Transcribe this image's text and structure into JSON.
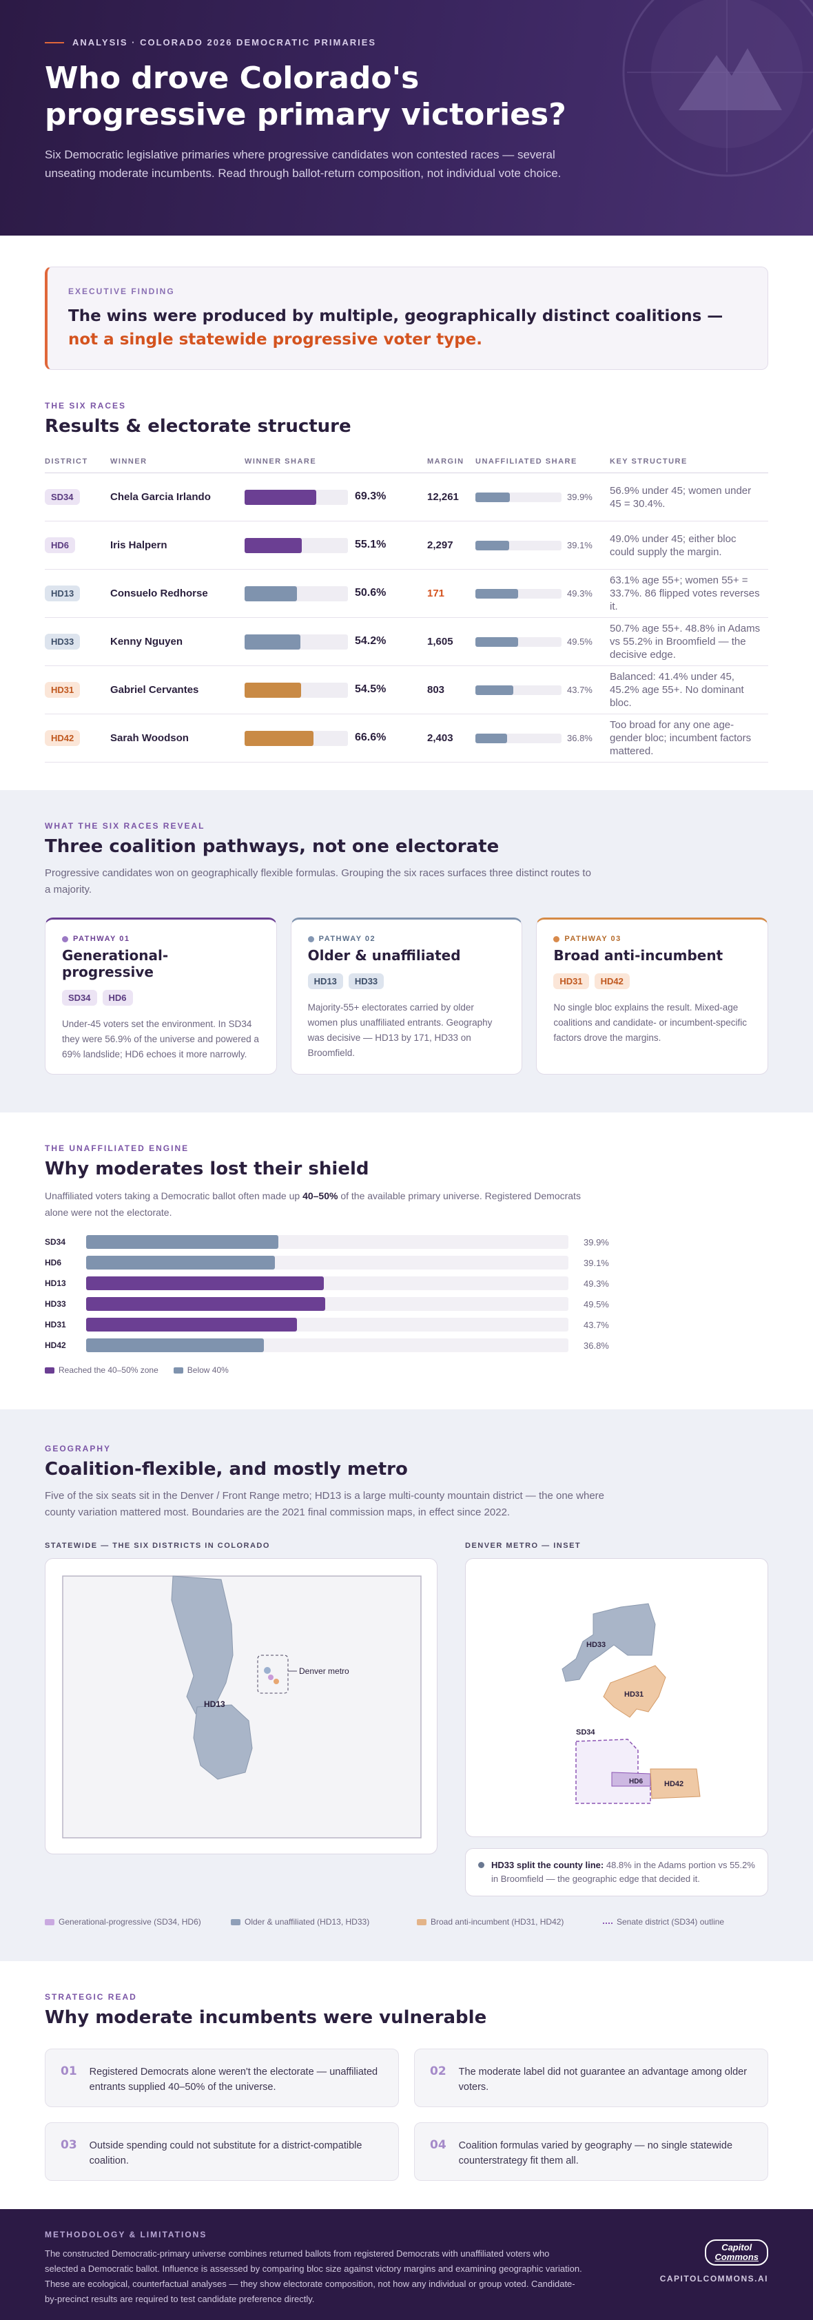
{
  "hero": {
    "kicker": "ANALYSIS · COLORADO 2026 DEMOCRATIC PRIMARIES",
    "title": "Who drove Colorado's progressive primary victories?",
    "subtitle": "Six Democratic legislative primaries where progressive candidates won contested races — several unseating moderate incumbents. Read through ballot-return composition, not individual vote choice."
  },
  "finding": {
    "label": "EXECUTIVE FINDING",
    "text_main": "The wins were produced by multiple, geographically distinct coalitions — ",
    "text_accent": "not a single statewide progressive voter type."
  },
  "races": {
    "eyebrow": "THE SIX RACES",
    "title": "Results & electorate structure",
    "columns": [
      "DISTRICT",
      "WINNER",
      "WINNER SHARE",
      "MARGIN",
      "UNAFFILIATED SHARE",
      "KEY STRUCTURE"
    ],
    "rows": [
      {
        "district": "SD34",
        "winner": "Chela Garcia Irlando",
        "share": 69.3,
        "share_label": "69.3%",
        "margin": "12,261",
        "unaff": 39.9,
        "unaff_label": "39.9%",
        "structure": "56.9% under 45; women under 45 = 30.4%.",
        "pathway": 1
      },
      {
        "district": "HD6",
        "winner": "Iris Halpern",
        "share": 55.1,
        "share_label": "55.1%",
        "margin": "2,297",
        "unaff": 39.1,
        "unaff_label": "39.1%",
        "structure": "49.0% under 45; either bloc could supply the margin.",
        "pathway": 1
      },
      {
        "district": "HD13",
        "winner": "Consuelo Redhorse",
        "share": 50.6,
        "share_label": "50.6%",
        "margin": "171",
        "unaff": 49.3,
        "unaff_label": "49.3%",
        "structure": "63.1% age 55+; women 55+ = 33.7%. 86 flipped votes reverses it.",
        "pathway": 2
      },
      {
        "district": "HD33",
        "winner": "Kenny Nguyen",
        "share": 54.2,
        "share_label": "54.2%",
        "margin": "1,605",
        "unaff": 49.5,
        "unaff_label": "49.5%",
        "structure": "50.7% age 55+. 48.8% in Adams vs 55.2% in Broomfield — the decisive edge.",
        "pathway": 2
      },
      {
        "district": "HD31",
        "winner": "Gabriel Cervantes",
        "share": 54.5,
        "share_label": "54.5%",
        "margin": "803",
        "unaff": 43.7,
        "unaff_label": "43.7%",
        "structure": "Balanced: 41.4% under 45, 45.2% age 55+. No dominant bloc.",
        "pathway": 3
      },
      {
        "district": "HD42",
        "winner": "Sarah Woodson",
        "share": 66.6,
        "share_label": "66.6%",
        "margin": "2,403",
        "unaff": 36.8,
        "unaff_label": "36.8%",
        "structure": "Too broad for any one age-gender bloc; incumbent factors mattered.",
        "pathway": 3
      }
    ]
  },
  "pathways": {
    "eyebrow": "WHAT THE SIX RACES REVEAL",
    "title": "Three coalition pathways, not one electorate",
    "lead": "Progressive candidates won on geographically flexible formulas. Grouping the six races surfaces three distinct routes to a majority.",
    "cards": [
      {
        "label": "PATHWAY 01",
        "title": "Generational-progressive",
        "districts": [
          "SD34",
          "HD6"
        ],
        "body": "Under-45 voters set the environment. In SD34 they were 56.9% of the universe and powered a 69% landslide; HD6 echoes it more narrowly."
      },
      {
        "label": "PATHWAY 02",
        "title": "Older & unaffiliated",
        "districts": [
          "HD13",
          "HD33"
        ],
        "body": "Majority-55+ electorates carried by older women plus unaffiliated entrants. Geography was decisive — HD13 by 171, HD33 on Broomfield."
      },
      {
        "label": "PATHWAY 03",
        "title": "Broad anti-incumbent",
        "districts": [
          "HD31",
          "HD42"
        ],
        "body": "No single bloc explains the result. Mixed-age coalitions and candidate- or incumbent-specific factors drove the margins."
      }
    ]
  },
  "engine": {
    "eyebrow": "THE UNAFFILIATED ENGINE",
    "title": "Why moderates lost their shield",
    "lead_a": "Unaffiliated voters taking a Democratic ballot often made up ",
    "lead_b": "40–50%",
    "lead_c": " of the available primary universe. Registered Democrats alone were not the electorate.",
    "legend_high": "Reached the 40–50% zone",
    "legend_low": "Below 40%"
  },
  "chart_data": {
    "type": "bar",
    "categories": [
      "SD34",
      "HD6",
      "HD13",
      "HD33",
      "HD31",
      "HD42"
    ],
    "values": [
      39.9,
      39.1,
      49.3,
      49.5,
      43.7,
      36.8
    ],
    "labels": [
      "39.9%",
      "39.1%",
      "49.3%",
      "49.5%",
      "43.7%",
      "36.8%"
    ],
    "xlim": [
      0,
      100
    ],
    "orientation": "horizontal",
    "colors": {
      "high": "#6b3f93",
      "low": "#7f93ae"
    }
  },
  "geo": {
    "eyebrow": "GEOGRAPHY",
    "title": "Coalition-flexible, and mostly metro",
    "lead": "Five of the six seats sit in the Denver / Front Range metro; HD13 is a large multi-county mountain district — the one where county variation mattered most. Boundaries are the 2021 final commission maps, in effect since 2022.",
    "state_label": "STATEWIDE — THE SIX DISTRICTS IN COLORADO",
    "metro_label": "DENVER METRO — INSET",
    "map_hd13": "HD13",
    "map_denver": "Denver metro",
    "map_hd33": "HD33",
    "map_hd31": "HD31",
    "map_sd34": "SD34",
    "map_hd6": "HD6",
    "map_hd42": "HD42",
    "note_bold": "HD33 split the county line:",
    "note_rest": " 48.8% in the Adams portion vs 55.2% in Broomfield — the geographic edge that decided it.",
    "legend": [
      "Generational-progressive (SD34, HD6)",
      "Older & unaffiliated (HD13, HD33)",
      "Broad anti-incumbent (HD31, HD42)",
      "Senate district (SD34) outline"
    ]
  },
  "strategic": {
    "eyebrow": "STRATEGIC READ",
    "title": "Why moderate incumbents were vulnerable",
    "items": [
      {
        "n": "01",
        "t": "Registered Democrats alone weren't the electorate — unaffiliated entrants supplied 40–50% of the universe."
      },
      {
        "n": "02",
        "t": "The moderate label did not guarantee an advantage among older voters."
      },
      {
        "n": "03",
        "t": "Outside spending could not substitute for a district-compatible coalition."
      },
      {
        "n": "04",
        "t": "Coalition formulas varied by geography — no single statewide counterstrategy fit them all."
      }
    ]
  },
  "footer": {
    "label": "METHODOLOGY & LIMITATIONS",
    "text": "The constructed Democratic-primary universe combines returned ballots from registered Democrats with unaffiliated voters who selected a Democratic ballot. Influence is assessed by comparing bloc size against victory margins and examining geographic variation. These are ecological, counterfactual analyses — they show electorate composition, not how any individual or group voted. Candidate-by-precinct results are required to test candidate preference directly.",
    "logo_top": "Capitol",
    "logo_bottom": "Commons",
    "site": "CAPITOLCOMMONS.AI"
  },
  "colors": {
    "pathway1": "#6b3f93",
    "pathway2": "#7f93ae",
    "pathway3": "#c98a45",
    "accent": "#d4531f"
  }
}
